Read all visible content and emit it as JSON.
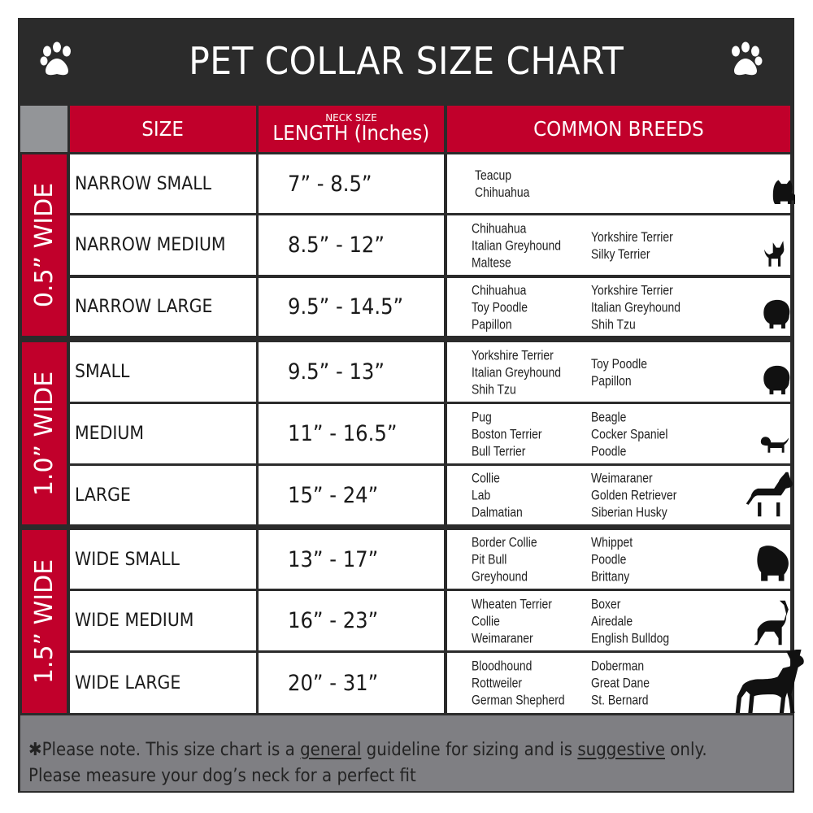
{
  "title": "PET COLLAR SIZE CHART",
  "colors": {
    "frame": "#2b2b2b",
    "header_red": "#c1002b",
    "corner_grey": "#939598",
    "footer_grey": "#7f7f83"
  },
  "icons": {
    "title_left": "paw-print-icon",
    "title_right": "paw-print-icon",
    "rows": "dog-silhouette-icon"
  },
  "header": {
    "size": "SIZE",
    "neck_size": "NECK SIZE",
    "length": "LENGTH (Inches)",
    "breeds": "COMMON BREEDS"
  },
  "groups": [
    {
      "label": "0.5” WIDE"
    },
    {
      "label": "1.0” WIDE"
    },
    {
      "label": "1.5” WIDE"
    }
  ],
  "rows": [
    {
      "size": "NARROW SMALL",
      "length": "7” - 8.5”",
      "breeds_col1": [
        "Teacup",
        "Chihuahua"
      ],
      "breeds_col2": []
    },
    {
      "size": "NARROW MEDIUM",
      "length": "8.5” - 12”",
      "breeds_col1": [
        "Chihuahua",
        "Italian Greyhound",
        "Maltese"
      ],
      "breeds_col2": [
        "Yorkshire Terrier",
        "Silky Terrier"
      ]
    },
    {
      "size": "NARROW LARGE",
      "length": "9.5” - 14.5”",
      "breeds_col1": [
        "Chihuahua",
        "Toy Poodle",
        "Papillon"
      ],
      "breeds_col2": [
        "Yorkshire Terrier",
        "Italian Greyhound",
        "Shih Tzu"
      ]
    },
    {
      "size": "SMALL",
      "length": "9.5” - 13”",
      "breeds_col1": [
        "Yorkshire Terrier",
        "Italian Greyhound",
        "Shih Tzu"
      ],
      "breeds_col2": [
        "Toy Poodle",
        "Papillon"
      ]
    },
    {
      "size": "MEDIUM",
      "length": "11” - 16.5”",
      "breeds_col1": [
        "Pug",
        "Boston Terrier",
        "Bull Terrier"
      ],
      "breeds_col2": [
        "Beagle",
        "Cocker Spaniel",
        "Poodle"
      ]
    },
    {
      "size": "LARGE",
      "length": "15” - 24”",
      "breeds_col1": [
        "Collie",
        "Lab",
        "Dalmatian"
      ],
      "breeds_col2": [
        "Weimaraner",
        "Golden Retriever",
        "Siberian Husky"
      ]
    },
    {
      "size": "WIDE SMALL",
      "length": "13” - 17”",
      "breeds_col1": [
        "Border Collie",
        "Pit Bull",
        "Greyhound"
      ],
      "breeds_col2": [
        "Whippet",
        "Poodle",
        "Brittany"
      ]
    },
    {
      "size": "WIDE MEDIUM",
      "length": "16” - 23”",
      "breeds_col1": [
        "Wheaten Terrier",
        "Collie",
        "Weimaraner"
      ],
      "breeds_col2": [
        "Boxer",
        "Airedale",
        "English Bulldog"
      ]
    },
    {
      "size": "WIDE LARGE",
      "length": "20” - 31”",
      "breeds_col1": [
        "Bloodhound",
        "Rottweiler",
        "German Shepherd"
      ],
      "breeds_col2": [
        "Doberman",
        "Great Dane",
        "St. Bernard"
      ]
    }
  ],
  "footer": {
    "note_prefix": "✱Please note. This size chart is a",
    "note_general": "general",
    "note_middle": " guideline for sizing and is",
    "note_suggestive": "suggestive",
    "note_suffix": " only.",
    "line2": "Please measure your dog’s neck for a perfect fit"
  }
}
